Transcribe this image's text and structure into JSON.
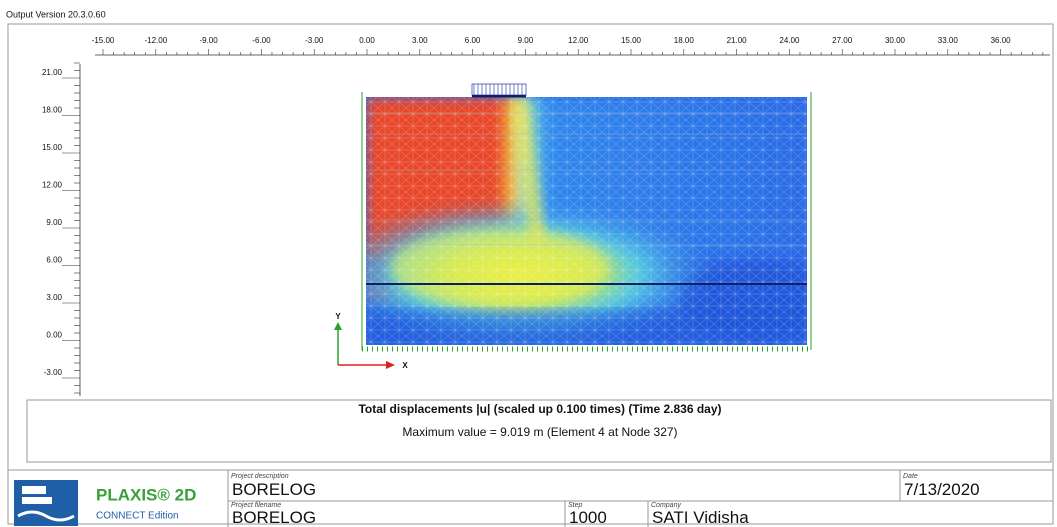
{
  "header": {
    "version": "Output Version 20.3.0.60"
  },
  "plot": {
    "x_tick_labels": [
      "-15.00",
      "-12.00",
      "-9.00",
      "-6.00",
      "-3.00",
      "0.00",
      "3.00",
      "6.00",
      "9.00",
      "12.00",
      "15.00",
      "18.00",
      "21.00",
      "24.00",
      "27.00",
      "30.00",
      "33.00",
      "36.00"
    ],
    "y_tick_labels": [
      "21.00",
      "18.00",
      "15.00",
      "12.00",
      "9.00",
      "6.00",
      "3.00",
      "0.00",
      "-3.00"
    ],
    "axis_y": "Y",
    "axis_x": "X"
  },
  "caption": {
    "title": "Total displacements |u| (scaled up 0.100 times) (Time 2.836 day)",
    "subtitle": "Maximum value = 9.019 m (Element 4 at Node 327)"
  },
  "footer": {
    "product": "PLAXIS® 2D",
    "edition": "CONNECT Edition",
    "project_description_label": "Project description",
    "project_description": "BORELOG",
    "project_filename_label": "Project filename",
    "project_filename": "BORELOG",
    "step_label": "Step",
    "step": "1000",
    "company_label": "Company",
    "company": "SATI Vidisha",
    "date_label": "Date",
    "date": "7/13/2020"
  }
}
